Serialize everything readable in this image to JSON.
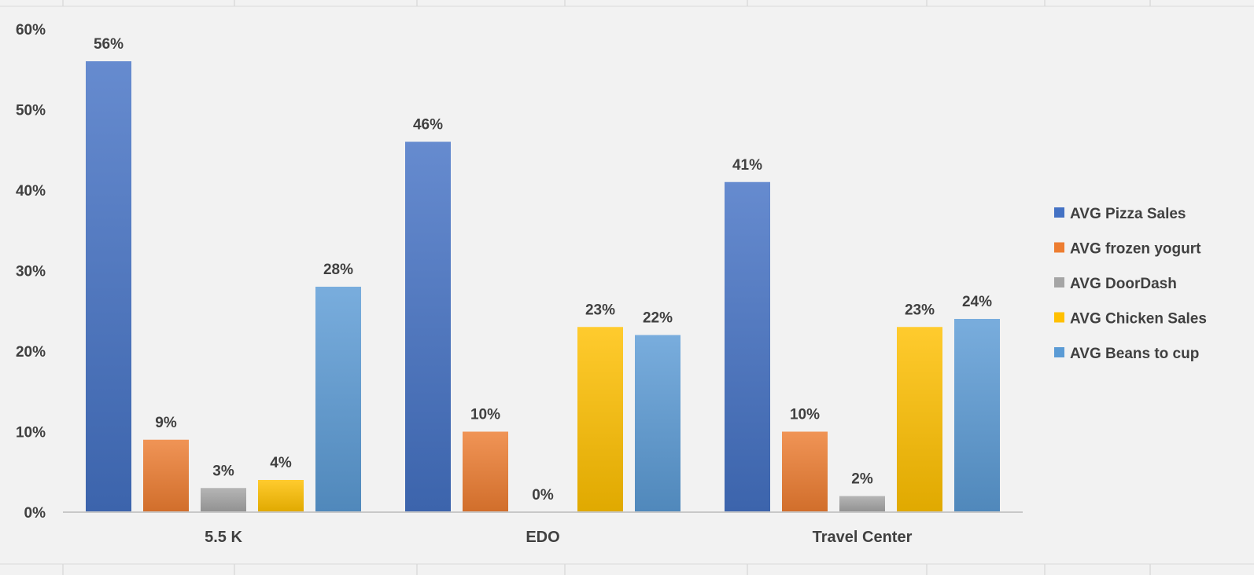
{
  "chart_data": {
    "type": "bar",
    "title": "",
    "xlabel": "",
    "ylabel": "",
    "categories": [
      "5.5 K",
      "EDO",
      "Travel Center"
    ],
    "series": [
      {
        "name": "AVG Pizza Sales",
        "values": [
          56,
          46,
          41
        ],
        "labels": [
          "56%",
          "46%",
          "41%"
        ],
        "color": "#4472C4"
      },
      {
        "name": "AVG frozen yogurt",
        "values": [
          9,
          10,
          10
        ],
        "labels": [
          "9%",
          "10%",
          "10%"
        ],
        "color": "#ED7D31"
      },
      {
        "name": "AVG DoorDash",
        "values": [
          3,
          0,
          2
        ],
        "labels": [
          "3%",
          "0%",
          "2%"
        ],
        "color": "#A5A5A5"
      },
      {
        "name": "AVG Chicken Sales",
        "values": [
          4,
          23,
          23
        ],
        "labels": [
          "4%",
          "23%",
          "23%"
        ],
        "color": "#FFC000"
      },
      {
        "name": "AVG Beans to cup",
        "values": [
          28,
          22,
          24
        ],
        "labels": [
          "28%",
          "22%",
          "24%"
        ],
        "color": "#5B9BD5"
      }
    ],
    "ylim": [
      0,
      60
    ],
    "yticks": [
      "0%",
      "10%",
      "20%",
      "30%",
      "40%",
      "50%",
      "60%"
    ],
    "grid": false,
    "legend_position": "right"
  }
}
